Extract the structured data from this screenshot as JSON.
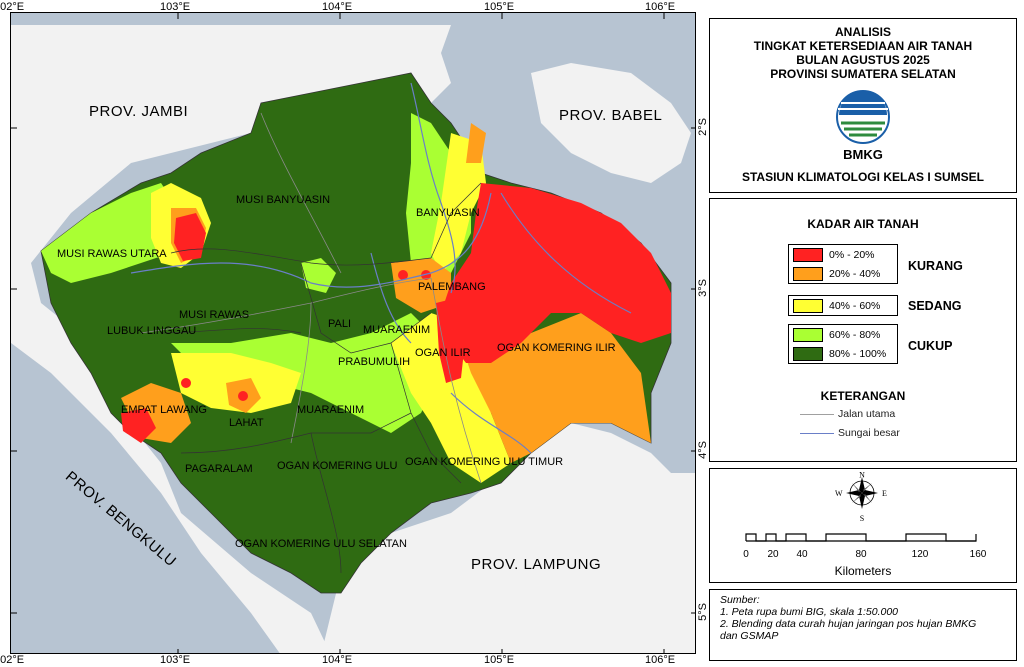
{
  "title": {
    "line1": "ANALISIS",
    "line2": "TINGKAT KETERSEDIAAN AIR TANAH",
    "line3": "BULAN AGUSTUS 2025",
    "line4": "PROVINSI SUMATERA SELATAN",
    "logo_text": "BMKG",
    "station": "STASIUN KLIMATOLOGI KELAS I SUMSEL"
  },
  "legend": {
    "heading": "KADAR AIR TANAH",
    "classes": [
      {
        "label": "0% - 20%",
        "color": "#ff2222"
      },
      {
        "label": "20% - 40%",
        "color": "#ff9f1c"
      },
      {
        "label": "40% - 60%",
        "color": "#ffff33"
      },
      {
        "label": "60% - 80%",
        "color": "#aaff33"
      },
      {
        "label": "80% - 100%",
        "color": "#2f6b12"
      }
    ],
    "groups": [
      "KURANG",
      "SEDANG",
      "CUKUP"
    ],
    "notes_heading": "KETERANGAN",
    "notes": [
      {
        "label": "Jalan utama",
        "color": "#a0a0a0"
      },
      {
        "label": "Sungai besar",
        "color": "#6a7fc8"
      }
    ]
  },
  "compass": {
    "n": "N",
    "s": "S",
    "e": "E",
    "w": "W"
  },
  "scale": {
    "ticks": [
      "0",
      "20",
      "40",
      "80",
      "120",
      "160"
    ],
    "unit": "Kilometers"
  },
  "source": {
    "heading": "Sumber:",
    "line1": "1. Peta rupa bumi BIG, skala 1:50.000",
    "line2": "2. Blending data curah hujan jaringan pos hujan BMKG",
    "line3": "dan GSMAP"
  },
  "coords": {
    "top": [
      "102°E",
      "103°E",
      "104°E",
      "105°E",
      "106°E"
    ],
    "bottom": [
      "102°E",
      "103°E",
      "104°E",
      "105°E",
      "106°E"
    ],
    "right": [
      "2°S",
      "3°S",
      "4°S",
      "5°S"
    ]
  },
  "neighbors": {
    "jambi": "PROV. JAMBI",
    "babel": "PROV. BABEL",
    "bengkulu": "PROV. BENGKULU",
    "lampung": "PROV. LAMPUNG"
  },
  "regencies": {
    "musi_banyuasin": "MUSI BANYUASIN",
    "banyuasin": "BANYUASIN",
    "musi_rawas_utara": "MUSI RAWAS UTARA",
    "musi_rawas": "MUSI RAWAS",
    "lubuk_linggau": "LUBUK LINGGAU",
    "palembang": "PALEMBANG",
    "pali": "PALI",
    "muaraenim_north": "MUARAENIM",
    "prabumulih": "PRABUMULIH",
    "ogan_ilir": "OGAN ILIR",
    "ogan_komering_ilir": "OGAN KOMERING ILIR",
    "empat_lawang": "EMPAT LAWANG",
    "lahat": "LAHAT",
    "muaraenim": "MUARAENIM",
    "pagaralam": "PAGARALAM",
    "oku": "OGAN KOMERING ULU",
    "oku_timur": "OGAN KOMERING ULU TIMUR",
    "oku_selatan": "OGAN KOMERING ULU SELATAN"
  }
}
